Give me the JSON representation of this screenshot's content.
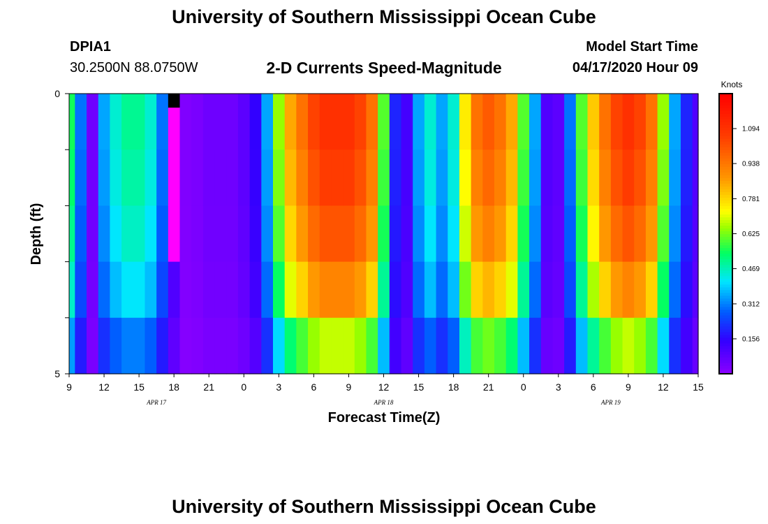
{
  "header": {
    "title": "University of Southern Mississippi Ocean Cube",
    "station_id": "DPIA1",
    "station_coords": "30.2500N 88.0750W",
    "chart_title": "2-D Currents Speed-Magnitude",
    "model_start_label": "Model Start Time",
    "model_start_value": "04/17/2020 Hour 09"
  },
  "footer": {
    "title": "University of Southern Mississippi Ocean Cube"
  },
  "chart_data": {
    "type": "heatmap",
    "title": "2-D Currents Speed-Magnitude",
    "xlabel": "Forecast Time(Z)",
    "ylabel": "Depth (ft)",
    "colorbar_label": "Knots",
    "x_hours": [
      0,
      1,
      2,
      3,
      4,
      5,
      6,
      7,
      8,
      9,
      10,
      11,
      12,
      13,
      14,
      15,
      16,
      17,
      18,
      19,
      20,
      21,
      22,
      23,
      24,
      25,
      26,
      27,
      28,
      29,
      30,
      31,
      32,
      33,
      34,
      35,
      36,
      37,
      38,
      39,
      40,
      41,
      42,
      43,
      44,
      45,
      46,
      47,
      48,
      49,
      50,
      51,
      52,
      53,
      54
    ],
    "xlim": [
      0,
      54
    ],
    "x_tick_hours": [
      0,
      3,
      6,
      9,
      12,
      15,
      18,
      21,
      24,
      27,
      30,
      33,
      36,
      39,
      42,
      45,
      48,
      51,
      54
    ],
    "x_tick_labels": [
      "9",
      "12",
      "15",
      "18",
      "21",
      "0",
      "3",
      "6",
      "9",
      "12",
      "15",
      "18",
      "21",
      "0",
      "3",
      "6",
      "9",
      "12",
      "15"
    ],
    "date_labels": [
      {
        "hour": 7.5,
        "text": "APR 17"
      },
      {
        "hour": 27,
        "text": "APR 18"
      },
      {
        "hour": 46.5,
        "text": "APR 19"
      }
    ],
    "y_ticks": [
      0,
      1,
      2,
      3,
      4,
      5
    ],
    "y_tick_labels": [
      "0",
      "",
      "",
      "",
      "",
      "5"
    ],
    "ylim": [
      0,
      5
    ],
    "depth_levels": [
      0,
      0.5,
      1.5,
      2.5,
      3.5,
      4.5
    ],
    "color_scale": {
      "min": 0,
      "max": 1.25,
      "ticks": [
        0.156,
        0.312,
        0.469,
        0.625,
        0.781,
        0.938,
        1.094
      ],
      "tick_labels": [
        "0.156",
        "0.312",
        "0.469",
        "0.625",
        "0.781",
        "0.938",
        "1.094"
      ]
    },
    "surface_speeds": [
      0.55,
      0.3,
      0.05,
      0.35,
      0.45,
      0.5,
      0.5,
      0.45,
      0.3,
      0.12,
      0.02,
      0.03,
      0.05,
      0.05,
      0.05,
      0.08,
      0.15,
      0.35,
      0.65,
      0.85,
      0.95,
      1.05,
      1.1,
      1.1,
      1.1,
      1.05,
      0.95,
      0.6,
      0.2,
      0.12,
      0.35,
      0.45,
      0.35,
      0.45,
      0.75,
      0.95,
      1.0,
      0.95,
      0.85,
      0.6,
      0.35,
      0.1,
      0.08,
      0.3,
      0.6,
      0.8,
      0.95,
      1.05,
      1.1,
      1.05,
      0.95,
      0.65,
      0.35,
      0.2,
      0.1
    ],
    "depth_factors": [
      1.0,
      1.0,
      0.97,
      0.92,
      0.83,
      0.62
    ],
    "missing_cells": [
      {
        "hour": 9,
        "depths": [
          0
        ]
      }
    ],
    "highlight_cells": [
      {
        "hour": 9,
        "depths": [
          1,
          2,
          3
        ]
      }
    ]
  }
}
